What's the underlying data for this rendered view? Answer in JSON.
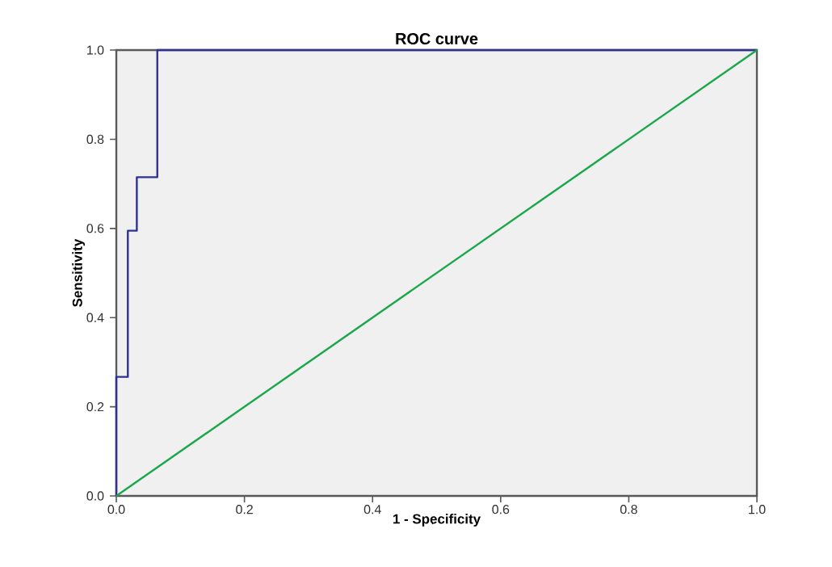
{
  "chart_data": {
    "type": "line",
    "title": "ROC curve",
    "xlabel": "1 - Specificity",
    "ylabel": "Sensitivity",
    "xlim": [
      0,
      1
    ],
    "ylim": [
      0,
      1
    ],
    "xticks": [
      {
        "value": 0,
        "label": "0.0"
      },
      {
        "value": 0.2,
        "label": "0.2"
      },
      {
        "value": 0.4,
        "label": "0.4"
      },
      {
        "value": 0.6,
        "label": "0.6"
      },
      {
        "value": 0.8,
        "label": "0.8"
      },
      {
        "value": 1,
        "label": "1.0"
      }
    ],
    "yticks": [
      {
        "value": 0,
        "label": "0.0"
      },
      {
        "value": 0.2,
        "label": "0.2"
      },
      {
        "value": 0.4,
        "label": "0.4"
      },
      {
        "value": 0.6,
        "label": "0.6"
      },
      {
        "value": 0.8,
        "label": "0.8"
      },
      {
        "value": 1,
        "label": "1.0"
      }
    ],
    "series": [
      {
        "color": "#2e3192",
        "x": [
          0,
          0,
          0.018,
          0.018,
          0.032,
          0.032,
          0.064,
          0.064,
          1
        ],
        "values": [
          0,
          0.267,
          0.267,
          0.595,
          0.595,
          0.715,
          0.715,
          1,
          1
        ]
      },
      {
        "color": "#1aa64a",
        "x": [
          0,
          1
        ],
        "values": [
          0,
          1
        ]
      }
    ]
  }
}
